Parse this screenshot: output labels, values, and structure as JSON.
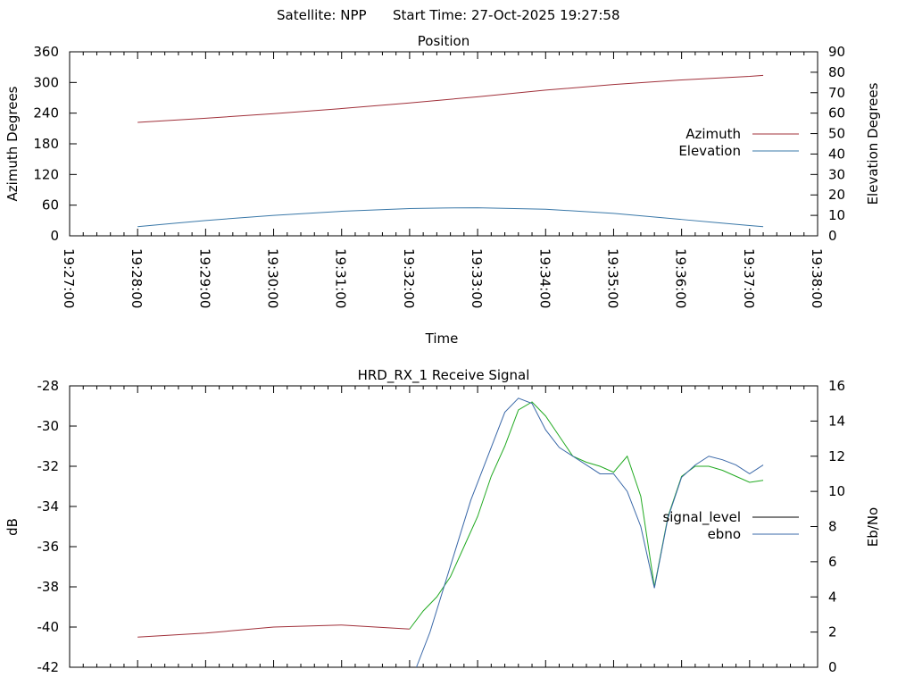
{
  "header": {
    "satellite_label": "Satellite: NPP",
    "start_time_label": "Start Time: 27-Oct-2025 19:27:58"
  },
  "chart_data": [
    {
      "type": "line",
      "title": "Position",
      "xlabel": "Time",
      "ylabel": "Azimuth Degrees",
      "y2label": "Elevation Degrees",
      "x_ticks": [
        "19:27:00",
        "19:28:00",
        "19:29:00",
        "19:30:00",
        "19:31:00",
        "19:32:00",
        "19:33:00",
        "19:34:00",
        "19:35:00",
        "19:36:00",
        "19:37:00",
        "19:38:00"
      ],
      "x_range_minutes": [
        0,
        11
      ],
      "ylim": [
        0,
        360
      ],
      "y_ticks": [
        0,
        60,
        120,
        180,
        240,
        300,
        360
      ],
      "y2lim": [
        0,
        90
      ],
      "y2_ticks": [
        0,
        10,
        20,
        30,
        40,
        50,
        60,
        70,
        80,
        90
      ],
      "legend_position": "right",
      "series": [
        {
          "name": "Azimuth",
          "axis": "y",
          "color": "#a0303a",
          "x": [
            1.0,
            2.0,
            3.0,
            4.0,
            5.0,
            6.0,
            7.0,
            8.0,
            9.0,
            10.0,
            10.2
          ],
          "y": [
            222,
            230,
            239,
            249,
            260,
            272,
            285,
            296,
            305,
            312,
            314
          ]
        },
        {
          "name": "Elevation",
          "axis": "y2",
          "color": "#3a78a8",
          "x": [
            1.0,
            1.5,
            2.0,
            3.0,
            4.0,
            5.0,
            5.5,
            6.0,
            7.0,
            8.0,
            9.0,
            9.5,
            10.0,
            10.2
          ],
          "y": [
            4.5,
            6.0,
            7.5,
            10.0,
            12.0,
            13.3,
            13.6,
            13.7,
            13.0,
            11.0,
            8.0,
            6.5,
            5.0,
            4.5
          ]
        }
      ]
    },
    {
      "type": "line",
      "title": "HRD_RX_1 Receive Signal",
      "ylabel": "dB",
      "y2label": "Eb/No",
      "ylim": [
        -42,
        -28
      ],
      "y_ticks": [
        -42,
        -40,
        -38,
        -36,
        -34,
        -32,
        -30,
        -28
      ],
      "y2lim": [
        0,
        16
      ],
      "y2_ticks": [
        0,
        2,
        4,
        6,
        8,
        10,
        12,
        14,
        16
      ],
      "legend_position": "right",
      "series": [
        {
          "name": "signal_level",
          "axis": "y",
          "color": "#a0303a",
          "color_after_acquisition": "#22aa22",
          "x": [
            1.0,
            2.0,
            3.0,
            4.0,
            5.0,
            5.2,
            5.4,
            5.6,
            5.8,
            6.0,
            6.2,
            6.4,
            6.6,
            6.8,
            7.0,
            7.2,
            7.4,
            7.6,
            7.8,
            8.0,
            8.2,
            8.4,
            8.6,
            8.8,
            9.0,
            9.2,
            9.4,
            9.6,
            9.8,
            10.0,
            10.2
          ],
          "y": [
            -40.5,
            -40.3,
            -40.0,
            -39.9,
            -40.1,
            -39.2,
            -38.5,
            -37.5,
            -36.0,
            -34.5,
            -32.5,
            -31.0,
            -29.2,
            -28.8,
            -29.5,
            -30.5,
            -31.5,
            -31.8,
            -32.0,
            -32.3,
            -31.5,
            -33.5,
            -38.0,
            -34.5,
            -32.5,
            -32.0,
            -32.0,
            -32.2,
            -32.5,
            -32.8,
            -32.7
          ]
        },
        {
          "name": "ebno",
          "axis": "y2",
          "color": "#3a68a8",
          "x": [
            5.1,
            5.3,
            5.5,
            5.7,
            5.9,
            6.0,
            6.2,
            6.4,
            6.6,
            6.8,
            7.0,
            7.2,
            7.4,
            7.6,
            7.8,
            8.0,
            8.2,
            8.4,
            8.6,
            8.8,
            9.0,
            9.2,
            9.4,
            9.6,
            9.8,
            10.0,
            10.2
          ],
          "y": [
            0.0,
            2.0,
            4.5,
            7.0,
            9.5,
            10.5,
            12.5,
            14.5,
            15.3,
            15.0,
            13.5,
            12.5,
            12.0,
            11.5,
            11.0,
            11.0,
            10.0,
            8.0,
            4.5,
            8.5,
            10.8,
            11.5,
            12.0,
            11.8,
            11.5,
            11.0,
            11.5
          ]
        }
      ]
    }
  ]
}
